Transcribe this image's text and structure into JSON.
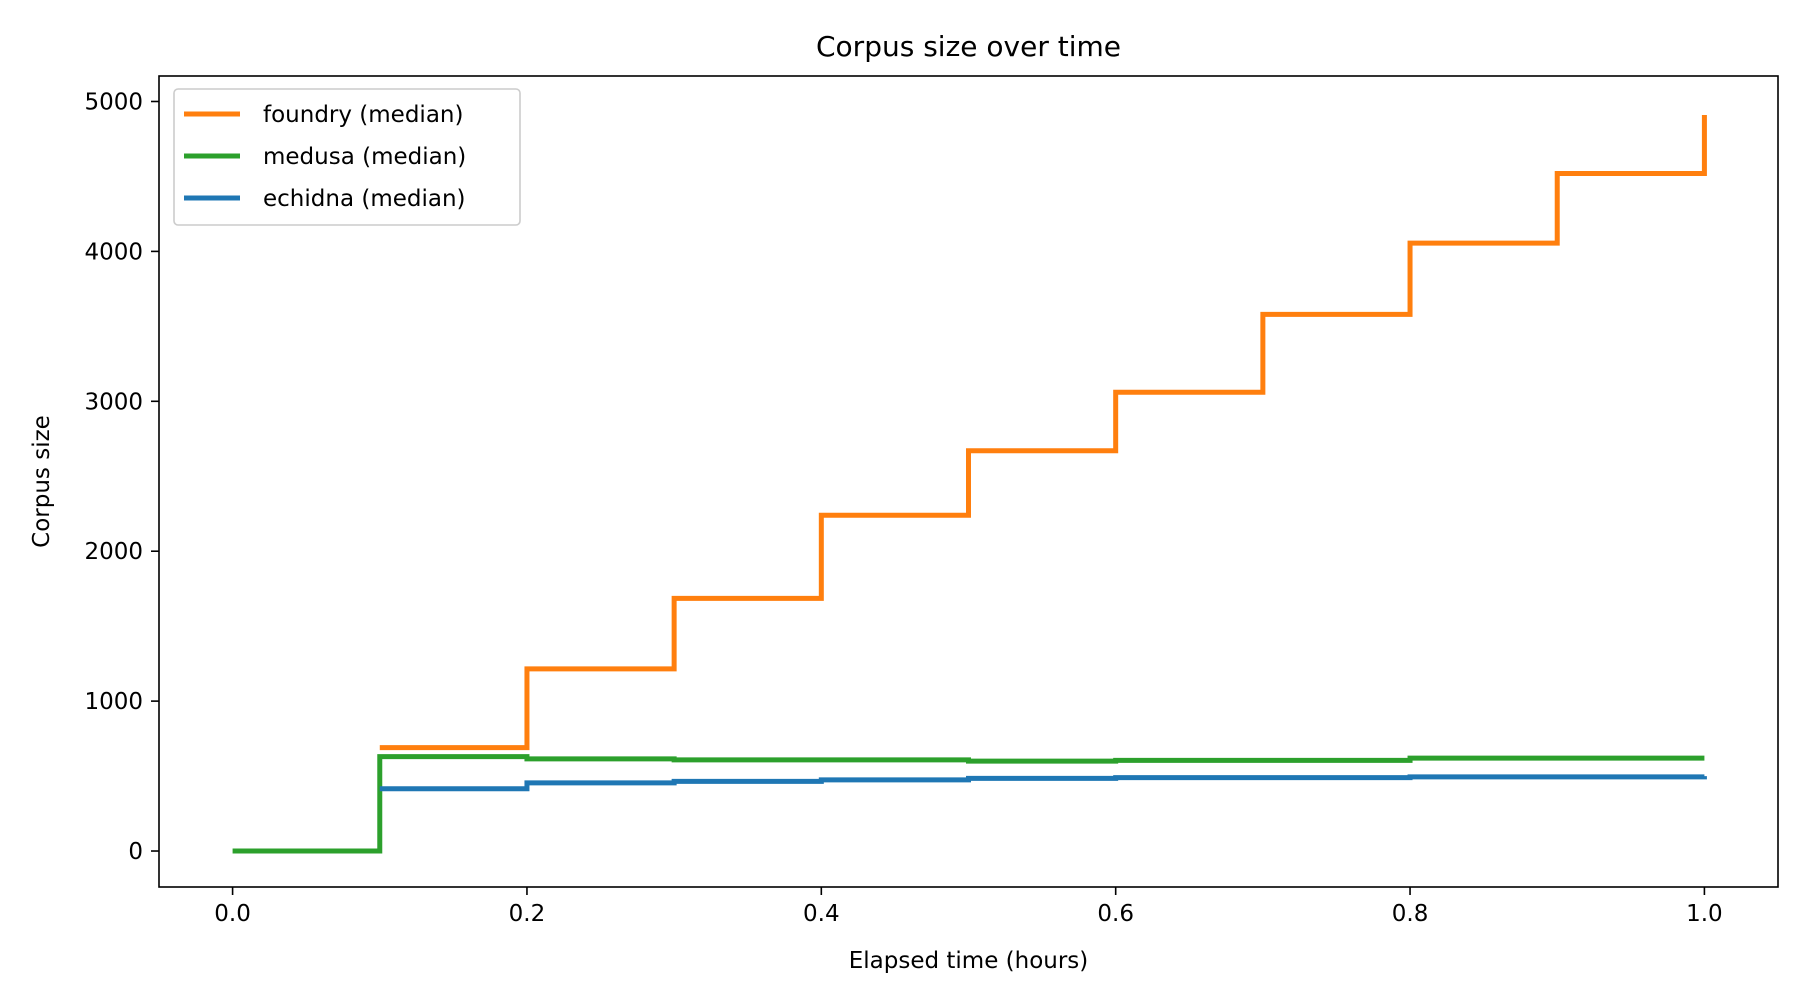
{
  "chart_data": {
    "type": "line",
    "step": "post",
    "title": "Corpus size over time",
    "xlabel": "Elapsed time (hours)",
    "ylabel": "Corpus size",
    "xlim": [
      -0.05,
      1.05
    ],
    "ylim": [
      -240,
      5170
    ],
    "xticks": [
      0.0,
      0.2,
      0.4,
      0.6,
      0.8,
      1.0
    ],
    "xtick_labels": [
      "0.0",
      "0.2",
      "0.4",
      "0.6",
      "0.8",
      "1.0"
    ],
    "yticks": [
      0,
      1000,
      2000,
      3000,
      4000,
      5000
    ],
    "ytick_labels": [
      "0",
      "1000",
      "2000",
      "3000",
      "4000",
      "5000"
    ],
    "grid": false,
    "legend_position": "top-left",
    "series": [
      {
        "name": "foundry (median)",
        "color": "#ff7f0e",
        "x": [
          0.1,
          0.2,
          0.3,
          0.4,
          0.5,
          0.6,
          0.7,
          0.8,
          0.9,
          1.0,
          1.0
        ],
        "y": [
          690,
          1215,
          1685,
          2240,
          2670,
          3060,
          3580,
          4055,
          4520,
          4520,
          4910
        ]
      },
      {
        "name": "medusa (median)",
        "color": "#2ca02c",
        "x": [
          0.0,
          0.1,
          0.2,
          0.3,
          0.5,
          0.6,
          0.8,
          1.0
        ],
        "y": [
          0,
          630,
          615,
          608,
          600,
          605,
          620,
          620
        ]
      },
      {
        "name": "echidna (median)",
        "color": "#1f77b4",
        "x": [
          0.1,
          0.2,
          0.3,
          0.4,
          0.5,
          0.6,
          0.8,
          1.0
        ],
        "y": [
          415,
          455,
          465,
          475,
          485,
          490,
          495,
          500
        ]
      }
    ]
  }
}
